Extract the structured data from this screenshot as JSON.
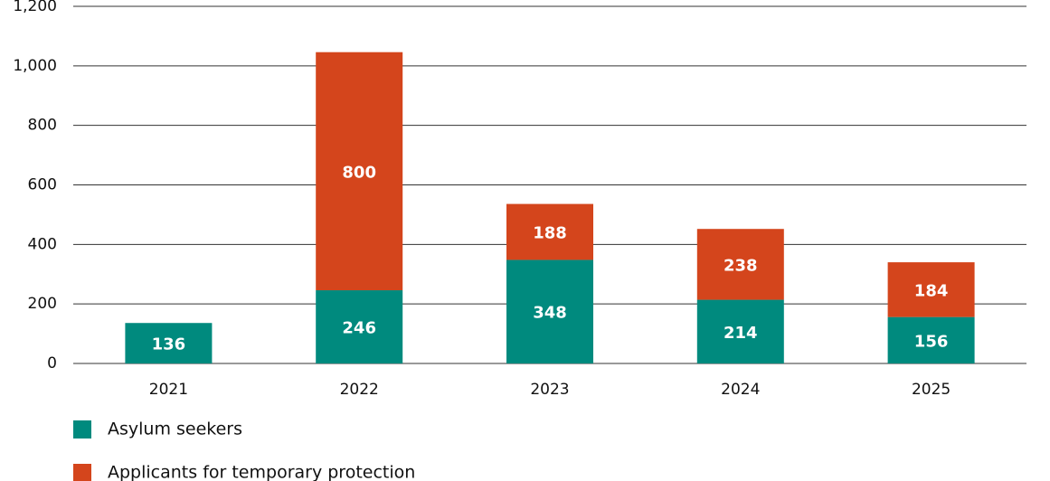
{
  "chart_data": {
    "type": "stacked_bar",
    "categories": [
      "2021",
      "2022",
      "2023",
      "2024",
      "2025"
    ],
    "series": [
      {
        "name": "Asylum seekers",
        "color": "#008a7e",
        "values": [
          136,
          246,
          348,
          214,
          156
        ]
      },
      {
        "name": "Applicants for temporary protection",
        "color": "#d4451c",
        "values": [
          null,
          800,
          188,
          238,
          184
        ]
      }
    ],
    "ylim": [
      0,
      1200
    ],
    "yticks": [
      0,
      200,
      400,
      600,
      800,
      {
        "value": 1000,
        "label": "1,000"
      },
      {
        "value": 1200,
        "label": "1,200"
      }
    ],
    "grid": true
  }
}
